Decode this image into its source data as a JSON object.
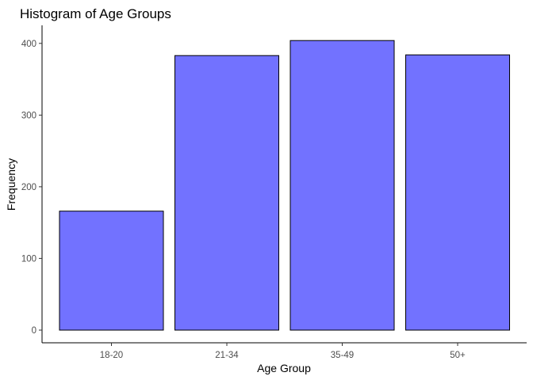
{
  "chart_data": {
    "type": "bar",
    "title": "Histogram of Age Groups",
    "xlabel": "Age Group",
    "ylabel": "Frequency",
    "categories": [
      "18-20",
      "21-34",
      "35-49",
      "50+"
    ],
    "values": [
      166,
      383,
      404,
      384
    ],
    "ylim": [
      0,
      420
    ],
    "yticks": [
      0,
      100,
      200,
      300,
      400
    ],
    "grid": false,
    "colors": {
      "bar_fill": "#7272FF",
      "bar_stroke": "#000000"
    }
  }
}
